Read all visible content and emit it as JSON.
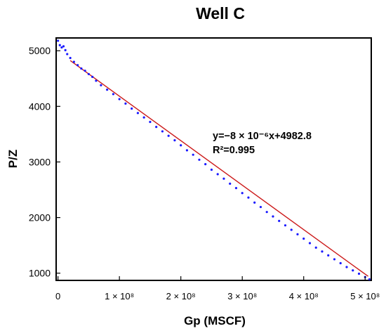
{
  "chart_data": {
    "type": "scatter",
    "title": "Well C",
    "xlabel": "Gp (MSCF)",
    "ylabel": "P/Z",
    "xlim": [
      -3000000,
      510000000
    ],
    "ylim": [
      870,
      5230
    ],
    "grid": false,
    "y_ticks": [
      {
        "value": 1000,
        "label": "1000"
      },
      {
        "value": 2000,
        "label": "2000"
      },
      {
        "value": 3000,
        "label": "3000"
      },
      {
        "value": 4000,
        "label": "4000"
      },
      {
        "value": 5000,
        "label": "5000"
      }
    ],
    "x_ticks": [
      {
        "value": 0,
        "label": "0"
      },
      {
        "value": 100000000,
        "label": "1 × 10⁸"
      },
      {
        "value": 200000000,
        "label": "2 × 10⁸"
      },
      {
        "value": 300000000,
        "label": "3 × 10⁸"
      },
      {
        "value": 400000000,
        "label": "4 × 10⁸"
      },
      {
        "value": 500000000,
        "label": "5 × 10⁸"
      }
    ],
    "series": [
      {
        "color": "#1a1aff",
        "marker": "dot",
        "points": [
          [
            0,
            5180
          ],
          [
            3000000,
            5100
          ],
          [
            6000000,
            5060
          ],
          [
            9000000,
            5080
          ],
          [
            12000000,
            5010
          ],
          [
            15000000,
            4940
          ],
          [
            20000000,
            4870
          ],
          [
            26000000,
            4800
          ],
          [
            32000000,
            4740
          ],
          [
            38000000,
            4680
          ],
          [
            44000000,
            4640
          ],
          [
            50000000,
            4580
          ],
          [
            56000000,
            4530
          ],
          [
            62000000,
            4460
          ],
          [
            70000000,
            4380
          ],
          [
            80000000,
            4300
          ],
          [
            90000000,
            4220
          ],
          [
            100000000,
            4130
          ],
          [
            110000000,
            4050
          ],
          [
            120000000,
            3960
          ],
          [
            130000000,
            3880
          ],
          [
            140000000,
            3800
          ],
          [
            150000000,
            3720
          ],
          [
            160000000,
            3630
          ],
          [
            170000000,
            3550
          ],
          [
            180000000,
            3470
          ],
          [
            190000000,
            3390
          ],
          [
            200000000,
            3300
          ],
          [
            210000000,
            3210
          ],
          [
            220000000,
            3130
          ],
          [
            230000000,
            3040
          ],
          [
            240000000,
            2960
          ],
          [
            250000000,
            2860
          ],
          [
            260000000,
            2780
          ],
          [
            270000000,
            2700
          ],
          [
            280000000,
            2610
          ],
          [
            290000000,
            2530
          ],
          [
            300000000,
            2440
          ],
          [
            310000000,
            2360
          ],
          [
            320000000,
            2270
          ],
          [
            330000000,
            2190
          ],
          [
            340000000,
            2100
          ],
          [
            350000000,
            2020
          ],
          [
            360000000,
            1940
          ],
          [
            370000000,
            1860
          ],
          [
            380000000,
            1780
          ],
          [
            390000000,
            1700
          ],
          [
            400000000,
            1620
          ],
          [
            410000000,
            1540
          ],
          [
            420000000,
            1460
          ],
          [
            430000000,
            1390
          ],
          [
            440000000,
            1320
          ],
          [
            450000000,
            1250
          ],
          [
            460000000,
            1180
          ],
          [
            470000000,
            1110
          ],
          [
            480000000,
            1050
          ],
          [
            490000000,
            990
          ],
          [
            500000000,
            930
          ],
          [
            507000000,
            890
          ]
        ]
      }
    ],
    "trendline": {
      "color": "#cc1a1a",
      "x_range": [
        20000000,
        505000000
      ],
      "y_range": [
        4822.8,
        942.8
      ]
    },
    "annotation": {
      "equation": "y=−8 × 10⁻⁶x+4982.8",
      "r2": "R²=0.995"
    }
  }
}
